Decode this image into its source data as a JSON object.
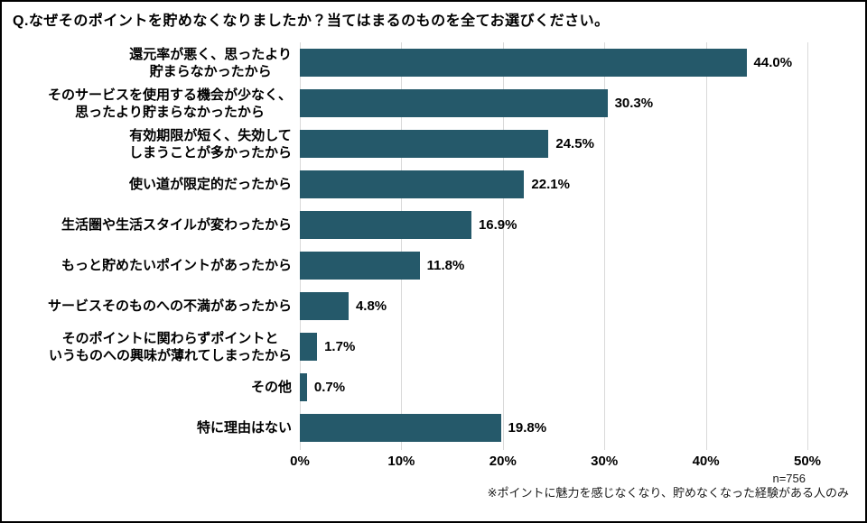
{
  "title": "Q.なぜそのポイントを貯めなくなりましたか？当てはまるのものを全てお選びください。",
  "chart_data": {
    "type": "bar",
    "orientation": "horizontal",
    "title": "Q.なぜそのポイントを貯めなくなりましたか？当てはまるのものを全てお選びください。",
    "categories": [
      "還元率が悪く、思ったより\n貯まらなかったから",
      "そのサービスを使用する機会が少なく、\n思ったより貯まらなかったから",
      "有効期限が短く、失効して\nしまうことが多かったから",
      "使い道が限定的だったから",
      "生活圏や生活スタイルが変わったから",
      "もっと貯めたいポイントがあったから",
      "サービスそのものへの不満があったから",
      "そのポイントに関わらずポイントと\nいうものへの興味が薄れてしまったから",
      "その他",
      "特に理由はない"
    ],
    "values": [
      44.0,
      30.3,
      24.5,
      22.1,
      16.9,
      11.8,
      4.8,
      1.7,
      0.7,
      19.8
    ],
    "value_labels": [
      "44.0%",
      "30.3%",
      "24.5%",
      "22.1%",
      "16.9%",
      "11.8%",
      "4.8%",
      "1.7%",
      "0.7%",
      "19.8%"
    ],
    "xlabel": "",
    "ylabel": "",
    "axis": {
      "min": 0,
      "max": 50,
      "ticks": [
        "0%",
        "10%",
        "20%",
        "30%",
        "40%",
        "50%"
      ],
      "grid": true
    },
    "bar_color": "#25596a",
    "grid_color": "#d9d9d9"
  },
  "footer": {
    "n_label": "n=756",
    "note": "※ポイントに魅力を感じなくなり、貯めなくなった経験がある人のみ"
  }
}
